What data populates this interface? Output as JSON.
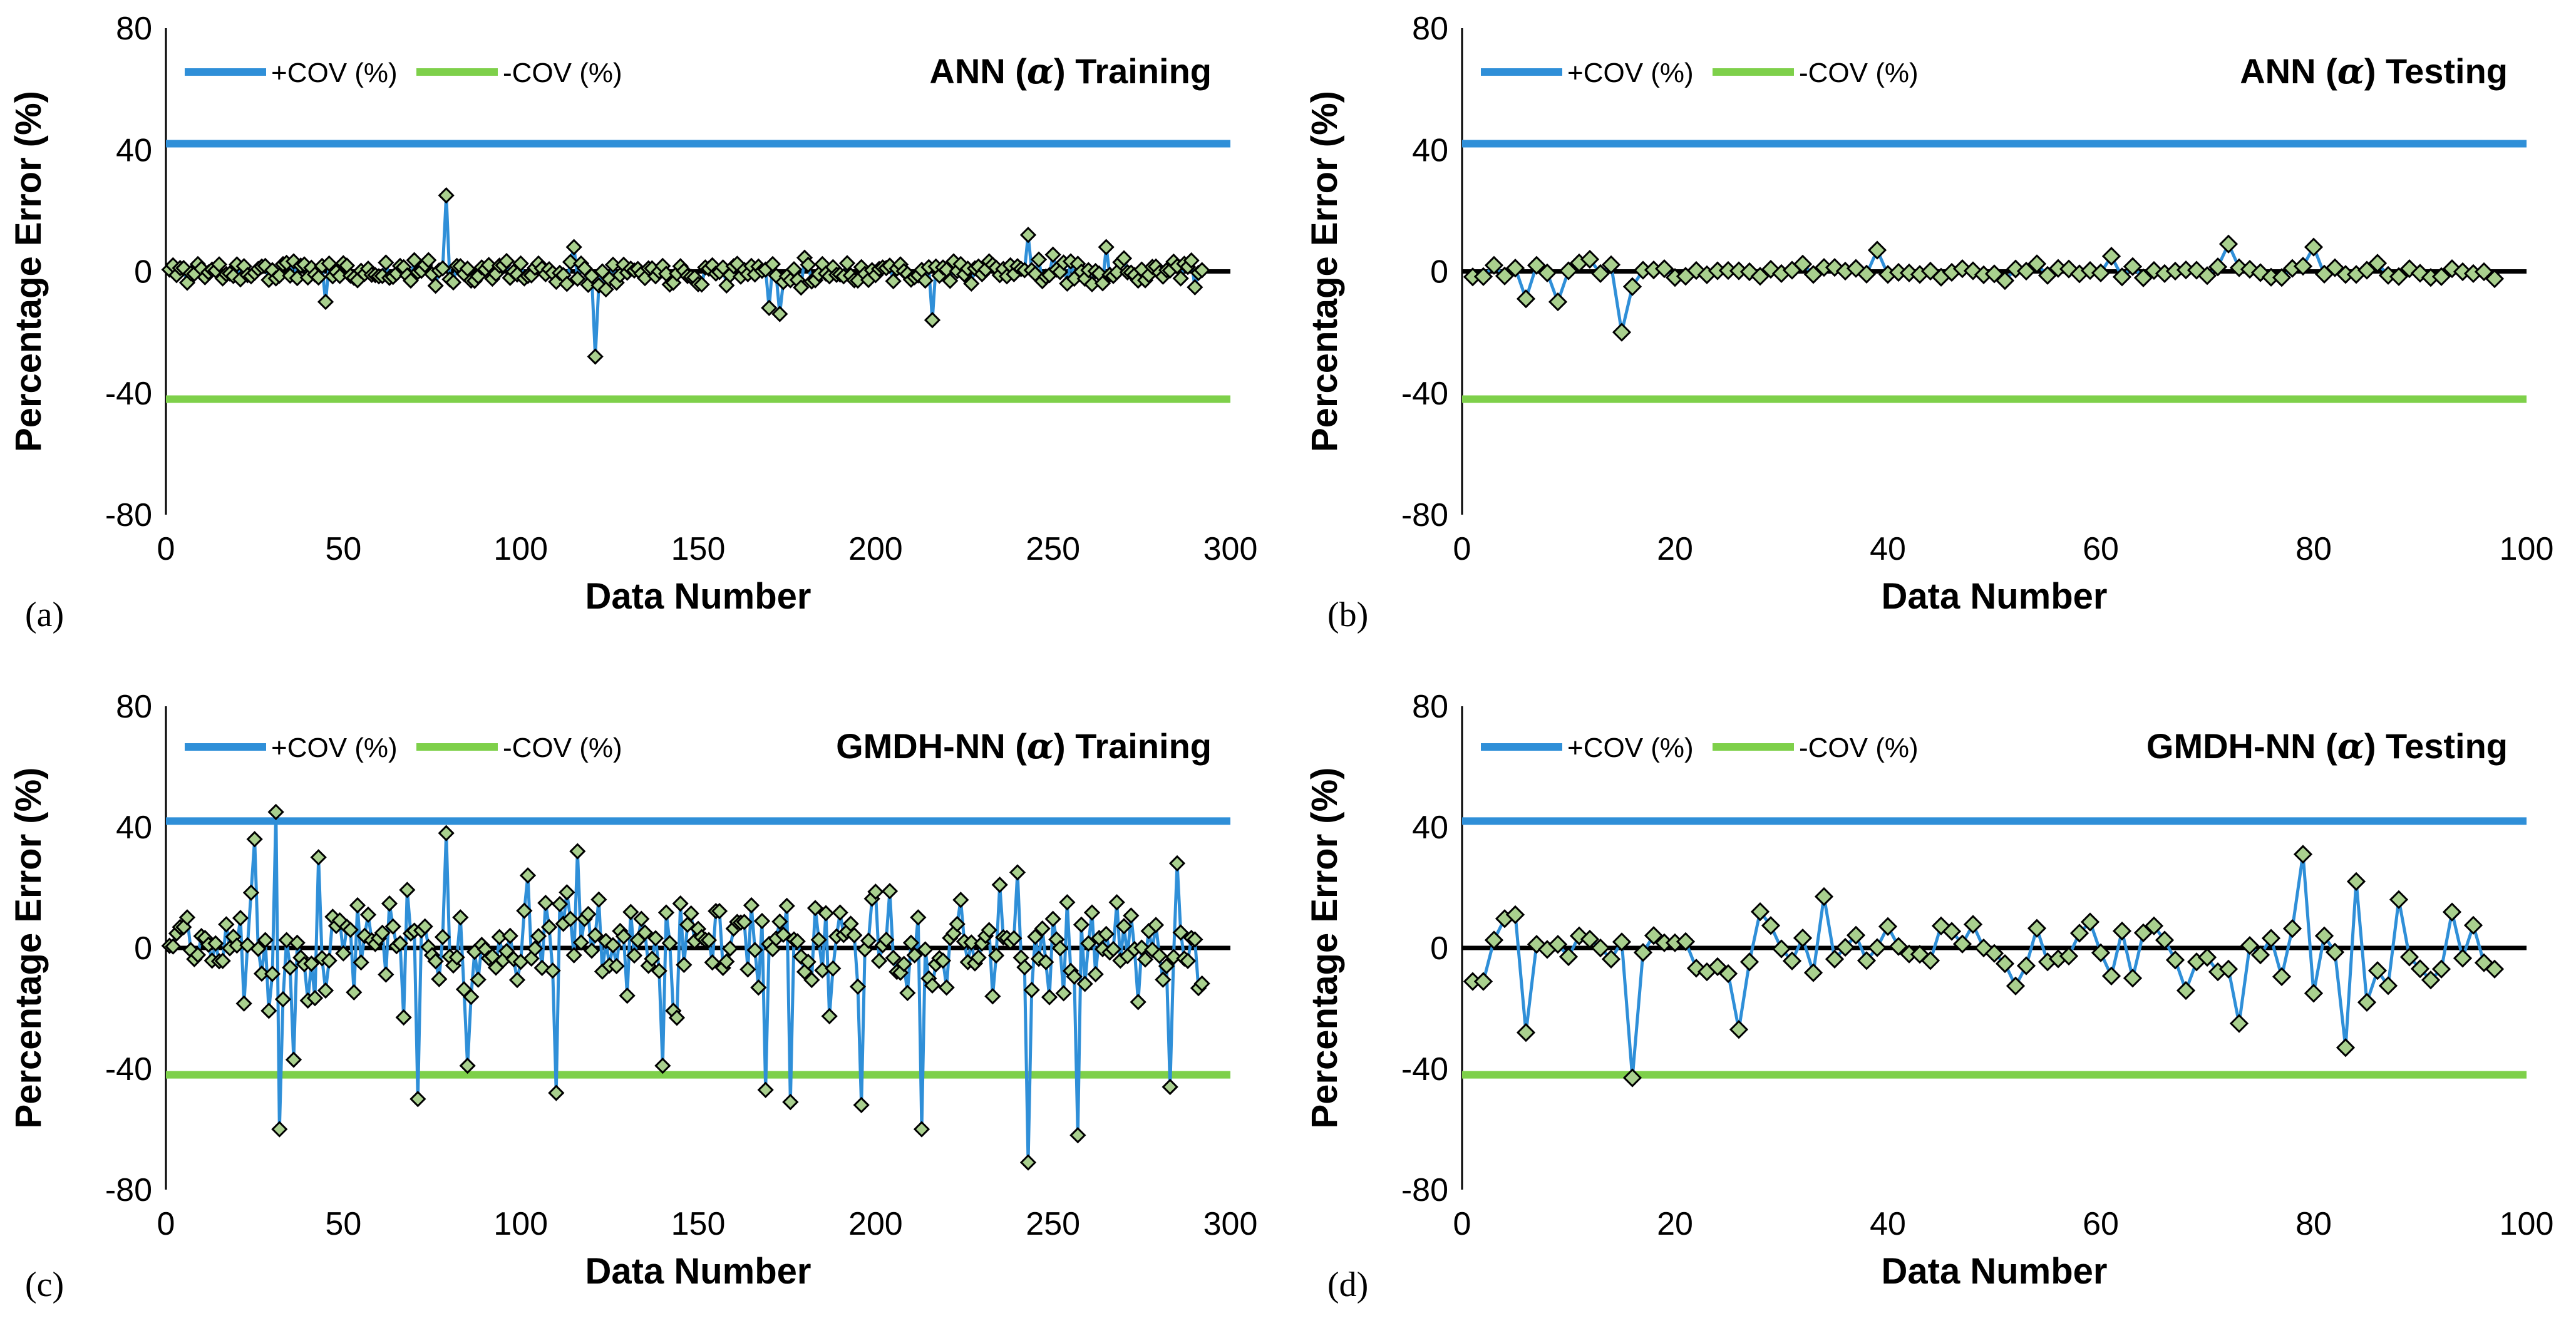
{
  "chart_data": [
    {
      "id": "a",
      "type": "line",
      "panel_label": "(a)",
      "title_prefix": "ANN (",
      "title_symbol": "α",
      "title_suffix": ") Training",
      "xlabel": "Data Number",
      "ylabel": "Percentage Error (%)",
      "xlim": [
        0,
        300
      ],
      "ylim": [
        -80,
        80
      ],
      "xticks": [
        0,
        50,
        100,
        150,
        200,
        250,
        300
      ],
      "yticks": [
        -80,
        -40,
        0,
        40,
        80
      ],
      "legend": [
        {
          "label": "+COV (%)",
          "color": "#2f8fd8"
        },
        {
          "label": "-COV (%)",
          "color": "#7ed04a"
        }
      ],
      "cov": 42,
      "n": 292,
      "seed": 11,
      "spread": 2.6,
      "spikes": {
        "79": 25,
        "121": -28,
        "243": 12,
        "216": -16,
        "170": -12,
        "173": -14,
        "45": -10,
        "115": 8,
        "265": 8
      }
    },
    {
      "id": "b",
      "type": "line",
      "panel_label": "(b)",
      "title_prefix": "ANN (",
      "title_symbol": "α",
      "title_suffix": ") Testing",
      "xlabel": "Data Number",
      "ylabel": "Percentage Error (%)",
      "xlim": [
        0,
        100
      ],
      "ylim": [
        -80,
        80
      ],
      "xticks": [
        0,
        20,
        40,
        60,
        80,
        100
      ],
      "yticks": [
        -80,
        -40,
        0,
        40,
        80
      ],
      "legend": [
        {
          "label": "+COV (%)",
          "color": "#2f8fd8"
        },
        {
          "label": "-COV (%)",
          "color": "#7ed04a"
        }
      ],
      "cov": 42,
      "n": 97,
      "seed": 23,
      "spread": 1.6,
      "spikes": {
        "6": -9,
        "7": 2,
        "9": -10,
        "15": -20,
        "16": -5,
        "39": 7,
        "72": 9,
        "80": 8,
        "61": 5,
        "12": 4,
        "51": -3
      }
    },
    {
      "id": "c",
      "type": "line",
      "panel_label": "(c)",
      "title_prefix": "GMDH-NN (",
      "title_symbol": "α",
      "title_suffix": ") Training",
      "xlabel": "Data Number",
      "ylabel": "Percentage Error (%)",
      "xlim": [
        0,
        300
      ],
      "ylim": [
        -80,
        80
      ],
      "xticks": [
        0,
        50,
        100,
        150,
        200,
        250,
        300
      ],
      "yticks": [
        -80,
        -40,
        0,
        40,
        80
      ],
      "legend": [
        {
          "label": "+COV (%)",
          "color": "#2f8fd8"
        },
        {
          "label": "-COV (%)",
          "color": "#7ed04a"
        }
      ],
      "cov": 42,
      "n": 292,
      "seed": 37,
      "spread": 11,
      "spikes": {
        "31": 45,
        "32": -60,
        "79": 38,
        "71": -50,
        "243": -71,
        "257": -62,
        "213": -60,
        "176": -51,
        "196": -52,
        "110": -48,
        "169": -47,
        "283": -46,
        "116": 32,
        "43": 30,
        "285": 28,
        "240": 25,
        "102": 24,
        "25": 36,
        "36": -37,
        "140": -39,
        "85": -39
      }
    },
    {
      "id": "d",
      "type": "line",
      "panel_label": "(d)",
      "title_prefix": "GMDH-NN (",
      "title_symbol": "α",
      "title_suffix": ") Testing",
      "xlabel": "Data Number",
      "ylabel": "Percentage Error (%)",
      "xlim": [
        0,
        100
      ],
      "ylim": [
        -80,
        80
      ],
      "xticks": [
        0,
        20,
        40,
        60,
        80,
        100
      ],
      "yticks": [
        -80,
        -40,
        0,
        40,
        80
      ],
      "legend": [
        {
          "label": "+COV (%)",
          "color": "#2f8fd8"
        },
        {
          "label": "-COV (%)",
          "color": "#7ed04a"
        }
      ],
      "cov": 42,
      "n": 97,
      "seed": 51,
      "spread": 8,
      "spikes": {
        "16": -43,
        "6": -28,
        "26": -27,
        "79": 31,
        "83": -33,
        "84": 22,
        "34": 17,
        "73": -25,
        "80": -15,
        "85": -18,
        "88": 16,
        "28": 12,
        "5": 11
      }
    }
  ]
}
